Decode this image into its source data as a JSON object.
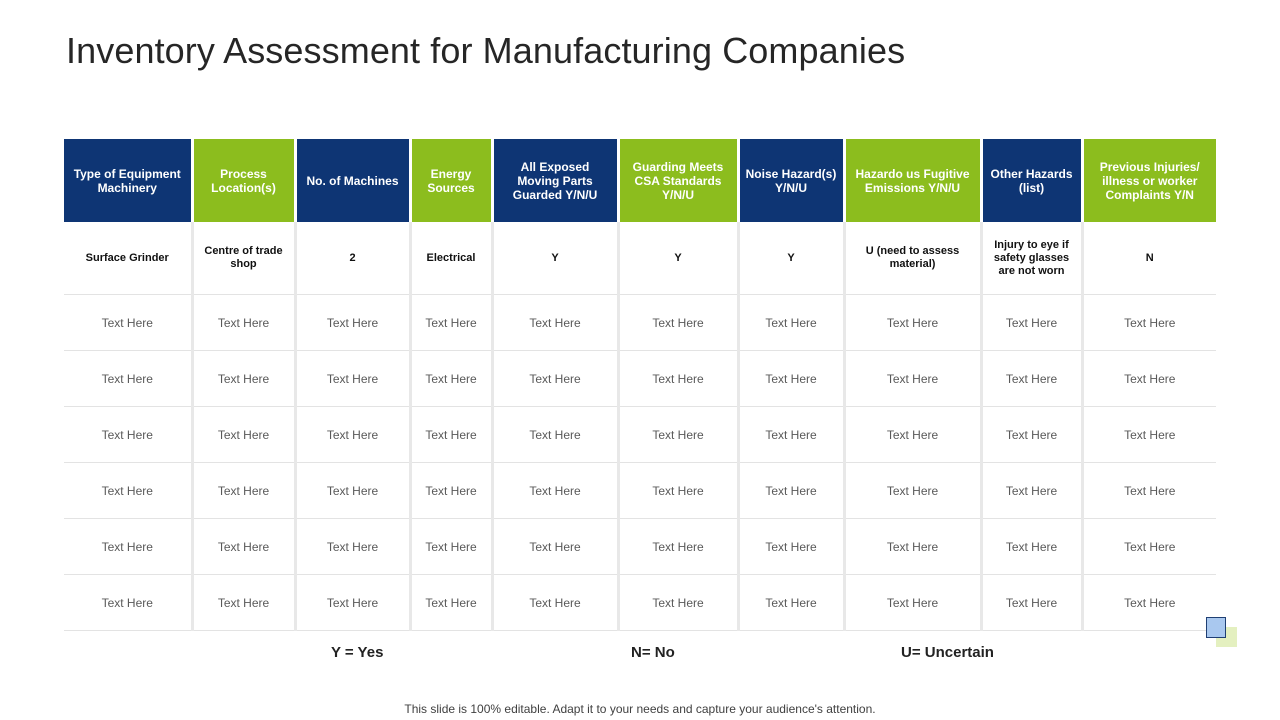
{
  "title": "Inventory Assessment for Manufacturing Companies",
  "headers": [
    {
      "label": "Type of Equipment Machinery",
      "color": "#0e3574"
    },
    {
      "label": "Process Location(s)",
      "color": "#8cbd1e"
    },
    {
      "label": "No. of Machines",
      "color": "#0e3574"
    },
    {
      "label": "Energy Sources",
      "color": "#8cbd1e"
    },
    {
      "label": "All Exposed Moving Parts Guarded Y/N/U",
      "color": "#0e3574"
    },
    {
      "label": "Guarding Meets CSA Standards Y/N/U",
      "color": "#8cbd1e"
    },
    {
      "label": "Noise Hazard(s) Y/N/U",
      "color": "#0e3574"
    },
    {
      "label": "Hazardo us Fugitive Emissions Y/N/U",
      "color": "#8cbd1e"
    },
    {
      "label": "Other Hazards (list)",
      "color": "#0e3574"
    },
    {
      "label": "Previous Injuries/ illness or worker Complaints Y/N",
      "color": "#8cbd1e"
    }
  ],
  "rows": [
    [
      "Surface Grinder",
      "Centre of trade shop",
      "2",
      "Electrical",
      "Y",
      "Y",
      "Y",
      "U (need to assess material)",
      "Injury to eye if safety glasses are not worn",
      "N"
    ],
    [
      "Text Here",
      "Text Here",
      "Text Here",
      "Text Here",
      "Text Here",
      "Text Here",
      "Text Here",
      "Text Here",
      "Text Here",
      "Text Here"
    ],
    [
      "Text Here",
      "Text Here",
      "Text Here",
      "Text Here",
      "Text Here",
      "Text Here",
      "Text Here",
      "Text Here",
      "Text Here",
      "Text Here"
    ],
    [
      "Text Here",
      "Text Here",
      "Text Here",
      "Text Here",
      "Text Here",
      "Text Here",
      "Text Here",
      "Text Here",
      "Text Here",
      "Text Here"
    ],
    [
      "Text Here",
      "Text Here",
      "Text Here",
      "Text Here",
      "Text Here",
      "Text Here",
      "Text Here",
      "Text Here",
      "Text Here",
      "Text Here"
    ],
    [
      "Text Here",
      "Text Here",
      "Text Here",
      "Text Here",
      "Text Here",
      "Text Here",
      "Text Here",
      "Text Here",
      "Text Here",
      "Text Here"
    ],
    [
      "Text Here",
      "Text Here",
      "Text Here",
      "Text Here",
      "Text Here",
      "Text Here",
      "Text Here",
      "Text Here",
      "Text Here",
      "Text Here"
    ]
  ],
  "legend": {
    "yes": "Y = Yes",
    "no": "N= No",
    "uncertain": "U= Uncertain"
  },
  "footer": "This slide is 100% editable. Adapt it to your needs and capture your audience's attention."
}
